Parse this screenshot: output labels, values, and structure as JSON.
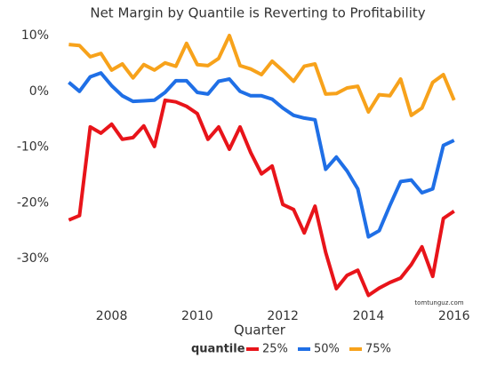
{
  "chart_data": {
    "type": "line",
    "title": "Net Margin by Quantile is Reverting to Profitability",
    "x_label": "Quarter",
    "watermark": "tomtunguz.com",
    "legend_title": "quantile",
    "legend": "bottom",
    "grid": false,
    "x": [
      2007,
      2007.25,
      2007.5,
      2007.75,
      2008,
      2008.25,
      2008.5,
      2008.75,
      2009,
      2009.25,
      2009.5,
      2009.75,
      2010,
      2010.25,
      2010.5,
      2010.75,
      2011,
      2011.25,
      2011.5,
      2011.75,
      2012,
      2012.25,
      2012.5,
      2012.75,
      2013,
      2013.25,
      2013.5,
      2013.75,
      2014,
      2014.25,
      2014.5,
      2014.75,
      2015,
      2015.25,
      2015.5,
      2015.75,
      2016
    ],
    "series": [
      {
        "name": "25%",
        "color": "#e8141a",
        "values": [
          -23.1,
          -22.3,
          -6.4,
          -7.5,
          -5.9,
          -8.6,
          -8.3,
          -6.2,
          -9.9,
          -1.6,
          -1.9,
          -2.7,
          -4.0,
          -8.6,
          -6.4,
          -10.4,
          -6.4,
          -11.0,
          -14.8,
          -13.4,
          -20.3,
          -21.2,
          -25.4,
          -20.6,
          -28.9,
          -35.4,
          -33.0,
          -32.1,
          -36.6,
          -35.3,
          -34.3,
          -33.5,
          -31.1,
          -27.9,
          -33.2,
          -22.8,
          -21.5
        ]
      },
      {
        "name": "50%",
        "color": "#1f6fe6",
        "values": [
          1.6,
          0,
          2.6,
          3.3,
          1.0,
          -0.8,
          -1.8,
          -1.7,
          -1.6,
          -0.2,
          1.9,
          1.9,
          -0.2,
          -0.5,
          1.8,
          2.2,
          0,
          -0.8,
          -0.8,
          -1.4,
          -3.0,
          -4.3,
          -4.8,
          -5.1,
          -14.0,
          -11.8,
          -14.3,
          -17.5,
          -26.1,
          -25.0,
          -20.5,
          -16.2,
          -15.9,
          -18.2,
          -17.5,
          -9.7,
          -8.8
        ]
      },
      {
        "name": "75%",
        "color": "#f7a21b",
        "values": [
          8.4,
          8.2,
          6.2,
          6.8,
          3.8,
          4.9,
          2.4,
          4.8,
          3.8,
          5.1,
          4.5,
          8.6,
          4.8,
          4.6,
          5.9,
          10.0,
          4.6,
          4.0,
          3.0,
          5.4,
          3.7,
          1.8,
          4.5,
          4.9,
          -0.5,
          -0.4,
          0.6,
          0.9,
          -3.7,
          -0.6,
          -0.8,
          2.2,
          -4.3,
          -3.0,
          1.6,
          3.0,
          -1.6
        ]
      }
    ],
    "xlim": [
      2006.95,
      2016.4
    ],
    "xticks": [
      2008,
      2010,
      2012,
      2014,
      2016
    ],
    "ylim": [
      -38.6,
      11.6
    ],
    "yticks": [
      {
        "value": 10,
        "label": "10%"
      },
      {
        "value": 0,
        "label": "0%"
      },
      {
        "value": -10,
        "label": "-10%"
      },
      {
        "value": -20,
        "label": "-20%"
      },
      {
        "value": -30,
        "label": "-30%"
      }
    ]
  }
}
